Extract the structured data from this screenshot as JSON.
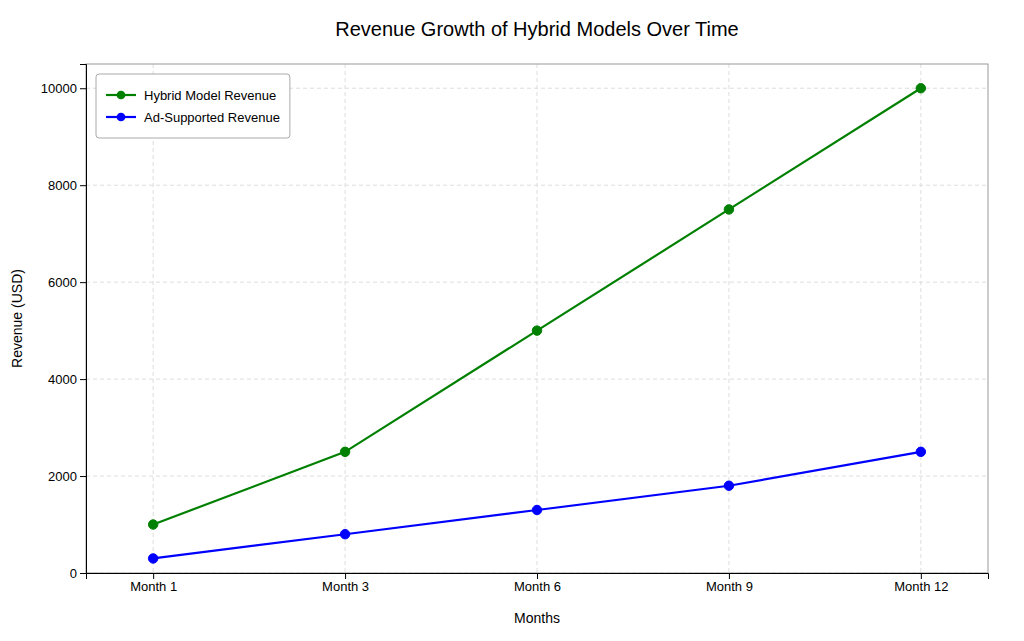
{
  "chart_data": {
    "type": "line",
    "title": "Revenue Growth of Hybrid Models Over Time",
    "xlabel": "Months",
    "ylabel": "Revenue (USD)",
    "categories": [
      "Month 1",
      "Month 3",
      "Month 6",
      "Month 9",
      "Month 12"
    ],
    "series": [
      {
        "name": "Hybrid Model Revenue",
        "color": "#008000",
        "marker": "circle",
        "values": [
          1000,
          2500,
          5000,
          7500,
          10000
        ]
      },
      {
        "name": "Ad-Supported Revenue",
        "color": "#0000FF",
        "marker": "circle",
        "values": [
          300,
          800,
          1300,
          1800,
          2500
        ]
      }
    ],
    "ylim": [
      0,
      10500
    ],
    "yticks": [
      0,
      2000,
      4000,
      6000,
      8000,
      10000
    ],
    "grid": true,
    "legend": "upper left"
  }
}
